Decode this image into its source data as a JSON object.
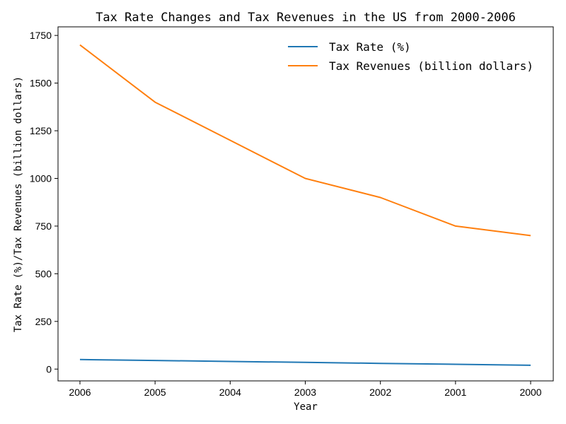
{
  "chart_data": {
    "type": "line",
    "title": "Tax Rate Changes and Tax Revenues in the US from 2000-2006",
    "xlabel": "Year",
    "ylabel": "Tax Rate (%)/Tax Revenues (billion dollars)",
    "categories": [
      "2006",
      "2005",
      "2004",
      "2003",
      "2002",
      "2001",
      "2000"
    ],
    "ylim": [
      -62,
      1795
    ],
    "yticks": [
      0,
      250,
      500,
      750,
      1000,
      1250,
      1500,
      1750
    ],
    "ytick_labels": [
      "0",
      "250",
      "500",
      "750",
      "1000",
      "1250",
      "1500",
      "1750"
    ],
    "grid": false,
    "legend_position": "top-right",
    "series": [
      {
        "name": "Tax Rate (%)",
        "color": "#1f77b4",
        "values": [
          50,
          45,
          40,
          35,
          30,
          25,
          20
        ]
      },
      {
        "name": "Tax Revenues (billion dollars)",
        "color": "#ff7f0e",
        "values": [
          1700,
          1400,
          1200,
          1000,
          900,
          750,
          700
        ]
      }
    ]
  }
}
